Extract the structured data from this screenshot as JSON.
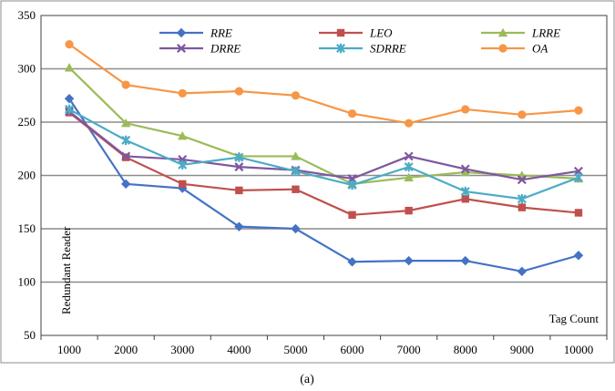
{
  "chart_data": {
    "type": "line",
    "title": "",
    "xlabel": "Tag Count",
    "ylabel": "Redundant Reader",
    "caption": "(a)",
    "categories": [
      "1000",
      "2000",
      "3000",
      "4000",
      "5000",
      "6000",
      "7000",
      "8000",
      "9000",
      "10000"
    ],
    "ylim": [
      50,
      350
    ],
    "yticks": [
      "50",
      "100",
      "150",
      "200",
      "250",
      "300",
      "350"
    ],
    "grid": true,
    "legend_position": "top",
    "series": [
      {
        "name": "RRE",
        "color": "#4472c4",
        "marker": "diamond",
        "values": [
          272,
          192,
          188,
          152,
          150,
          119,
          120,
          120,
          110,
          125
        ]
      },
      {
        "name": "LEO",
        "color": "#c0504d",
        "marker": "square",
        "values": [
          259,
          217,
          192,
          186,
          187,
          163,
          167,
          178,
          170,
          165
        ]
      },
      {
        "name": "LRRE",
        "color": "#9bbb59",
        "marker": "triangle",
        "values": [
          301,
          249,
          237,
          218,
          218,
          192,
          198,
          203,
          200,
          197
        ]
      },
      {
        "name": "DRRE",
        "color": "#7e57a0",
        "marker": "x",
        "values": [
          260,
          218,
          215,
          208,
          205,
          197,
          218,
          206,
          196,
          204
        ]
      },
      {
        "name": "SDRRE",
        "color": "#4bacc6",
        "marker": "star",
        "values": [
          262,
          233,
          210,
          217,
          204,
          191,
          208,
          185,
          178,
          198
        ]
      },
      {
        "name": "OA",
        "color": "#f79646",
        "marker": "circle",
        "values": [
          323,
          285,
          277,
          279,
          275,
          258,
          249,
          262,
          257,
          261
        ]
      }
    ]
  }
}
